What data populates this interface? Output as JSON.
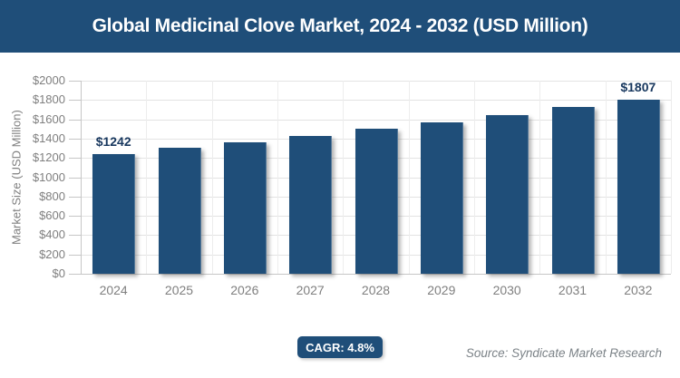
{
  "header": {
    "title": "Global Medicinal Clove Market, 2024 - 2032 (USD Million)"
  },
  "chart_data": {
    "type": "bar",
    "title": "Global Medicinal Clove Market, 2024 - 2032 (USD Million)",
    "categories": [
      "2024",
      "2025",
      "2026",
      "2027",
      "2028",
      "2029",
      "2030",
      "2031",
      "2032"
    ],
    "values": [
      1242,
      1302,
      1364,
      1430,
      1498,
      1570,
      1645,
      1724,
      1807
    ],
    "point_labels": [
      {
        "index": 0,
        "text": "$1242"
      },
      {
        "index": 8,
        "text": "$1807"
      }
    ],
    "xlabel": "",
    "ylabel": "Market Size (USD Million)",
    "ylim": [
      0,
      2000
    ],
    "ytick_step": 200,
    "ytick_prefix": "$",
    "grid": true,
    "legend": "none"
  },
  "footer": {
    "cagr_label": "CAGR: 4.8%",
    "source": "Source: Syndicate Market Research"
  },
  "colors": {
    "header_bg": "#1F4E79",
    "bar_fill": "#1F4E79",
    "data_label": "#17375E",
    "axis_text": "#7F7F7F",
    "gridline_h": "#E3E3E3",
    "gridline_v": "#EDEDED",
    "axis_line": "#C6C6C6",
    "badge_bg": "#1F4E79",
    "source_text": "#7B8287"
  }
}
